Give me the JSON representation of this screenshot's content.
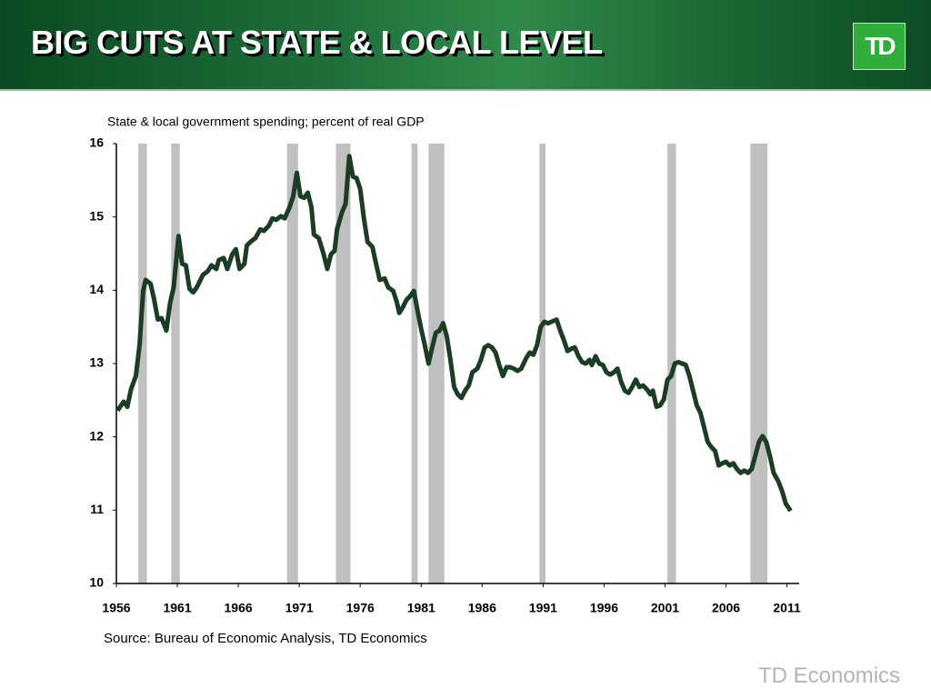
{
  "header": {
    "title": "BIG CUTS AT STATE & LOCAL LEVEL",
    "logo": "TD"
  },
  "footer": {
    "brand": "TD Economics"
  },
  "chart_data": {
    "type": "line",
    "subtitle": "State & local government spending; percent of real GDP",
    "source": "Source: Bureau of Economic Analysis, TD Economics",
    "xlim": [
      1956,
      2012
    ],
    "ylim": [
      10,
      16
    ],
    "xticks": [
      1956,
      1961,
      1966,
      1971,
      1976,
      1981,
      1986,
      1991,
      1996,
      2001,
      2006,
      2011
    ],
    "yticks": [
      10,
      11,
      12,
      13,
      14,
      15,
      16
    ],
    "recession_color": "#c0c0c0",
    "recessions": [
      [
        1957.8,
        1958.5
      ],
      [
        1960.5,
        1961.2
      ],
      [
        1970.0,
        1970.9
      ],
      [
        1974.0,
        1975.2
      ],
      [
        1980.2,
        1980.7
      ],
      [
        1981.6,
        1982.9
      ],
      [
        1990.7,
        1991.2
      ],
      [
        2001.2,
        2001.9
      ],
      [
        2008.0,
        2009.4
      ]
    ],
    "series": [
      {
        "color": "#1a3d24",
        "x": [
          1956.1,
          1956.6,
          1956.9,
          1957.2,
          1957.6,
          1957.9,
          1958.2,
          1958.4,
          1958.8,
          1959.1,
          1959.4,
          1959.7,
          1960.1,
          1960.4,
          1960.7,
          1961.1,
          1961.4,
          1961.7,
          1962.0,
          1962.3,
          1962.6,
          1963.1,
          1963.5,
          1963.8,
          1964.2,
          1964.4,
          1964.8,
          1965.1,
          1965.5,
          1965.8,
          1966.1,
          1966.5,
          1966.7,
          1967.0,
          1967.4,
          1967.8,
          1968.1,
          1968.5,
          1968.8,
          1969.1,
          1969.5,
          1969.8,
          1970.2,
          1970.5,
          1970.8,
          1971.1,
          1971.4,
          1971.7,
          1972.0,
          1972.2,
          1972.6,
          1973.0,
          1973.3,
          1973.6,
          1973.9,
          1974.1,
          1974.5,
          1974.8,
          1975.1,
          1975.4,
          1975.7,
          1976.0,
          1976.3,
          1976.6,
          1977.0,
          1977.3,
          1977.6,
          1978.0,
          1978.3,
          1978.7,
          1979.0,
          1979.2,
          1979.5,
          1979.8,
          1980.1,
          1980.4,
          1980.7,
          1981.0,
          1981.3,
          1981.6,
          1981.9,
          1982.2,
          1982.5,
          1982.8,
          1983.1,
          1983.4,
          1983.7,
          1984.0,
          1984.3,
          1984.6,
          1984.9,
          1985.2,
          1985.6,
          1985.9,
          1986.2,
          1986.5,
          1986.8,
          1987.1,
          1987.4,
          1987.7,
          1988.0,
          1988.3,
          1988.6,
          1988.9,
          1989.2,
          1989.6,
          1989.9,
          1990.2,
          1990.5,
          1990.8,
          1991.1,
          1991.4,
          1991.7,
          1992.1,
          1992.4,
          1992.7,
          1993.0,
          1993.3,
          1993.6,
          1993.9,
          1994.2,
          1994.5,
          1994.8,
          1995.0,
          1995.3,
          1995.6,
          1995.9,
          1996.2,
          1996.5,
          1996.8,
          1997.1,
          1997.4,
          1997.7,
          1998.0,
          1998.3,
          1998.6,
          1998.9,
          1999.2,
          1999.5,
          1999.8,
          2000.0,
          2000.3,
          2000.6,
          2000.9,
          2001.2,
          2001.5,
          2001.8,
          2002.1,
          2002.4,
          2002.7,
          2003.0,
          2003.3,
          2003.6,
          2003.9,
          2004.2,
          2004.5,
          2004.8,
          2005.1,
          2005.4,
          2005.7,
          2006.0,
          2006.3,
          2006.6,
          2006.9,
          2007.2,
          2007.5,
          2007.8,
          2008.1,
          2008.4,
          2008.7,
          2009.0,
          2009.3,
          2009.6,
          2009.9,
          2010.3,
          2010.6,
          2010.9,
          2011.3
        ],
        "values": [
          12.36,
          12.48,
          12.41,
          12.65,
          12.83,
          13.25,
          13.99,
          14.14,
          14.09,
          13.87,
          13.6,
          13.62,
          13.45,
          13.82,
          14.04,
          14.74,
          14.36,
          14.34,
          14.02,
          13.97,
          14.04,
          14.21,
          14.26,
          14.34,
          14.29,
          14.41,
          14.44,
          14.29,
          14.49,
          14.56,
          14.29,
          14.36,
          14.61,
          14.66,
          14.71,
          14.83,
          14.81,
          14.88,
          14.98,
          14.96,
          15.01,
          14.98,
          15.13,
          15.28,
          15.6,
          15.28,
          15.26,
          15.33,
          15.13,
          14.76,
          14.71,
          14.49,
          14.29,
          14.49,
          14.54,
          14.83,
          15.06,
          15.18,
          15.83,
          15.55,
          15.53,
          15.38,
          14.98,
          14.66,
          14.59,
          14.36,
          14.14,
          14.16,
          14.04,
          13.99,
          13.84,
          13.69,
          13.77,
          13.87,
          13.92,
          13.99,
          13.72,
          13.47,
          13.25,
          13.0,
          13.22,
          13.42,
          13.45,
          13.55,
          13.37,
          13.05,
          12.68,
          12.58,
          12.53,
          12.63,
          12.7,
          12.88,
          12.93,
          13.05,
          13.22,
          13.25,
          13.22,
          13.15,
          12.98,
          12.83,
          12.95,
          12.95,
          12.93,
          12.9,
          12.93,
          13.07,
          13.15,
          13.12,
          13.25,
          13.5,
          13.57,
          13.55,
          13.57,
          13.6,
          13.45,
          13.32,
          13.17,
          13.2,
          13.22,
          13.1,
          13.02,
          13.0,
          13.05,
          12.98,
          13.1,
          13.0,
          12.98,
          12.88,
          12.85,
          12.88,
          12.93,
          12.75,
          12.63,
          12.6,
          12.68,
          12.78,
          12.68,
          12.7,
          12.65,
          12.58,
          12.63,
          12.41,
          12.43,
          12.51,
          12.78,
          12.83,
          13.0,
          13.02,
          13.0,
          12.98,
          12.83,
          12.63,
          12.43,
          12.33,
          12.13,
          11.93,
          11.86,
          11.81,
          11.61,
          11.64,
          11.66,
          11.61,
          11.64,
          11.56,
          11.51,
          11.54,
          11.51,
          11.56,
          11.74,
          11.93,
          12.01,
          11.93,
          11.74,
          11.51,
          11.39,
          11.26,
          11.09,
          10.99
        ]
      }
    ]
  }
}
